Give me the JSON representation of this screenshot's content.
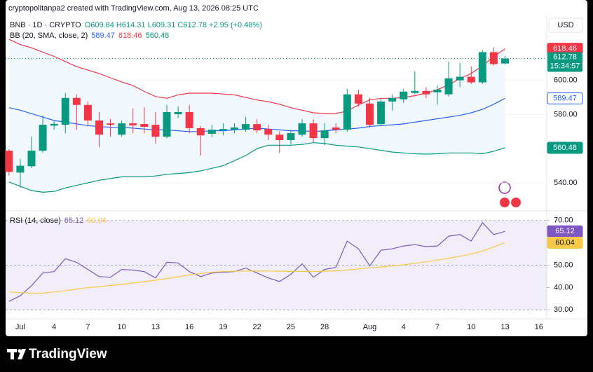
{
  "header": "cryptopolitanpa2 created with TradingView.com, Aug 13, 2026 08:25 UTC",
  "footer": "TradingView",
  "chart_data": [
    {
      "type": "candlestick",
      "legend_title": "BNB · 1D · CRYPTO",
      "legend_values": "O609.84 H614.31 L609.31 C612.78 +2.95 (+0.48%)",
      "currency": "USD",
      "countdown": "15:34:57",
      "categories": [
        null,
        "Jul",
        null,
        null,
        "4",
        null,
        null,
        "7",
        null,
        null,
        "10",
        null,
        null,
        "13",
        null,
        null,
        "16",
        null,
        null,
        "19",
        null,
        null,
        "22",
        null,
        null,
        "25",
        null,
        null,
        "28",
        null,
        null,
        null,
        "Aug",
        null,
        null,
        "4",
        null,
        null,
        "7",
        null,
        null,
        "10",
        null,
        null,
        "13",
        null,
        null,
        "16"
      ],
      "open": [
        558.8,
        546,
        549.7,
        558.8,
        573.5,
        574,
        589.7,
        585.6,
        576.5,
        574.8,
        568.2,
        574.8,
        574.4,
        574,
        567,
        580.2,
        581.4,
        572,
        568.7,
        570.7,
        571.1,
        571.1,
        574.4,
        571.5,
        568.2,
        565,
        568.2,
        574.8,
        566.2,
        572.4,
        571.1,
        591.8,
        586.4,
        574.4,
        587.6,
        588.9,
        592.6,
        593.8,
        593,
        591.8,
        600,
        602.1,
        598.8,
        616.5,
        609.84,
        null,
        null,
        null
      ],
      "high": [
        559.6,
        554,
        567,
        579.4,
        576,
        592.6,
        591.8,
        587.6,
        581.4,
        577.3,
        576.5,
        583.5,
        584.3,
        581.4,
        585.6,
        584.7,
        585.6,
        573.2,
        574,
        574.8,
        574.8,
        578.6,
        577.3,
        574,
        570.3,
        571.1,
        577.3,
        577.3,
        574.8,
        574.8,
        595,
        594.6,
        589.7,
        589.7,
        591.8,
        595,
        605.4,
        595.9,
        597.1,
        611.1,
        610.3,
        608.2,
        617.7,
        619.4,
        614.31,
        null,
        null,
        null
      ],
      "low": [
        544.3,
        537,
        548.5,
        557.5,
        571,
        569,
        571,
        573,
        560.8,
        567,
        567,
        569,
        569,
        562.9,
        566,
        578,
        569,
        555.9,
        566.6,
        567.8,
        569,
        569.9,
        569,
        565,
        557.5,
        562.5,
        567,
        563.7,
        562.1,
        569,
        569.9,
        584.7,
        572.4,
        573.2,
        582.3,
        586.8,
        591.8,
        589.7,
        585.6,
        590.5,
        595.9,
        597.9,
        597.9,
        608.7,
        609.31,
        null,
        null,
        null
      ],
      "close": [
        546.4,
        550,
        558.8,
        574,
        574.5,
        589.7,
        585.6,
        576.5,
        568.2,
        574,
        574.8,
        573.6,
        572.8,
        567,
        581.4,
        581.4,
        572,
        567.8,
        571.1,
        571.5,
        572.4,
        574.4,
        570.7,
        568.2,
        565,
        569.1,
        574.8,
        566.2,
        570.7,
        571.1,
        591.8,
        586.4,
        574,
        587.6,
        589.7,
        593.4,
        593.8,
        591.8,
        594.6,
        601.2,
        602.1,
        598.8,
        616.5,
        609.5,
        612.78,
        null,
        null,
        null
      ],
      "up_color": "#089981",
      "down_color": "#f23645",
      "ylim": [
        524,
        638
      ],
      "yticks": [
        {
          "value": 540,
          "label": "540.00"
        },
        {
          "value": 580,
          "label": "580.00"
        },
        {
          "value": 600,
          "label": "600.00"
        }
      ],
      "grid": true,
      "overlay": {
        "name": "BB (20, SMA, close, 2)",
        "fill": "#2196f3",
        "series": [
          {
            "color": "#2962ff",
            "values": [
              584,
              582.5,
              580.5,
              578.5,
              576.5,
              575.5,
              574.5,
              573.5,
              573,
              572.5,
              572.5,
              572,
              571.5,
              571,
              571,
              570.5,
              570,
              570,
              570.5,
              570.5,
              571,
              571.5,
              572,
              571.5,
              571,
              570.5,
              570.5,
              570,
              570.5,
              571,
              571.5,
              572,
              573,
              573.5,
              574,
              574.5,
              575.5,
              576.5,
              577.5,
              578.5,
              579.5,
              581,
              583,
              586,
              589.47,
              null,
              null,
              null
            ]
          },
          {
            "color": "#f23645",
            "values": [
              624,
              621,
              619,
              616.5,
              614,
              611,
              608,
              606,
              604,
              601.5,
              599,
              597,
              593.5,
              590.5,
              589.5,
              591.5,
              592.5,
              592.5,
              592.5,
              592,
              591.5,
              590,
              588.5,
              587.5,
              586,
              584,
              582.5,
              581,
              580.6,
              580.6,
              582,
              585.6,
              588.5,
              589.5,
              589.5,
              590,
              591,
              592.5,
              594.5,
              597.5,
              601,
              604,
              608.5,
              614,
              618.46,
              null,
              null,
              null
            ]
          },
          {
            "color": "#089981",
            "values": [
              540.5,
              538,
              535.5,
              534.5,
              535,
              537,
              538.5,
              540,
              541.5,
              542.5,
              543.5,
              543.5,
              543.5,
              544,
              545,
              545.5,
              546,
              547,
              548.5,
              550,
              553,
              556,
              560,
              562,
              562,
              562,
              562.5,
              563.5,
              563,
              562,
              561.5,
              561,
              560,
              559,
              558,
              557.5,
              557,
              556.8,
              557,
              557.5,
              557.5,
              557.5,
              557,
              558.5,
              560.48,
              null,
              null,
              null
            ]
          }
        ]
      }
    },
    {
      "type": "line",
      "legend_title": "RSI (14, close)",
      "ylim": [
        26,
        74
      ],
      "yticks": [
        {
          "value": 70,
          "label": "70.00"
        },
        {
          "value": 50,
          "label": "50.00"
        },
        {
          "value": 40,
          "label": "40.00"
        },
        {
          "value": 30,
          "label": "30.00"
        }
      ],
      "levels": [
        70,
        50,
        30
      ],
      "band_color": "#7e57c2",
      "series": [
        {
          "color": "#7e57c2",
          "values": [
            33.8,
            36.3,
            40.8,
            46.5,
            47.1,
            52.9,
            51.3,
            48.1,
            44.9,
            44.6,
            48.1,
            47.8,
            47.1,
            44.3,
            51.3,
            51,
            47.1,
            44.9,
            46.5,
            46.8,
            47.1,
            48.7,
            46.5,
            44.3,
            42.7,
            45.9,
            50.6,
            44.6,
            48.1,
            49,
            60.8,
            57.3,
            49.7,
            56.7,
            57.3,
            58.6,
            59.2,
            58.3,
            58.6,
            63,
            63.7,
            60.8,
            69,
            63.7,
            65.12,
            null,
            null,
            null
          ]
        },
        {
          "color": "#f7c948",
          "values": [
            38,
            37.7,
            37.5,
            37.5,
            38,
            38.6,
            39.3,
            39.9,
            40.4,
            40.9,
            41.4,
            42,
            42.6,
            43.3,
            44,
            44.8,
            45.6,
            46.3,
            46.8,
            47.1,
            47.3,
            47.4,
            47.4,
            47.4,
            47.3,
            47.2,
            47.2,
            47.2,
            47.3,
            47.5,
            47.8,
            48.3,
            48.8,
            49.2,
            49.7,
            50.2,
            50.8,
            51.5,
            52.3,
            53.1,
            54,
            55,
            56.3,
            58.2,
            60.04,
            null,
            null,
            null
          ]
        }
      ]
    }
  ]
}
